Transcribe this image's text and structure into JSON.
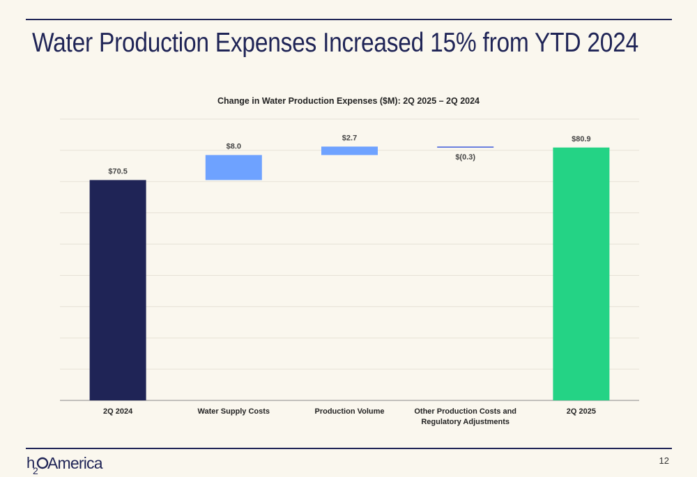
{
  "slide": {
    "title": "Water Production Expenses Increased 15% from YTD 2024",
    "page_number": "12",
    "logo_text": "America",
    "logo_mark": "H2O"
  },
  "colors": {
    "navy": "#1f2456",
    "increase": "#6ea2ff",
    "decrease": "#3d5bd9",
    "total_end": "#24d385",
    "background": "#faf7ee"
  },
  "chart_data": {
    "type": "bar",
    "subtype": "waterfall",
    "title": "Change in Water Production Expenses ($M): 2Q 2025 – 2Q 2024",
    "categories": [
      "2Q 2024",
      "Water Supply Costs",
      "Production Volume",
      "Other Production Costs and Regulatory Adjustments",
      "2Q 2025"
    ],
    "values": [
      70.5,
      8.0,
      2.7,
      -0.3,
      80.9
    ],
    "bar_kinds": [
      "total",
      "delta",
      "delta",
      "delta",
      "total"
    ],
    "data_labels": [
      "$70.5",
      "$8.0",
      "$2.7",
      "$(0.3)",
      "$80.9"
    ],
    "ylim": [
      0,
      90
    ],
    "grid": true,
    "legend": "none"
  }
}
